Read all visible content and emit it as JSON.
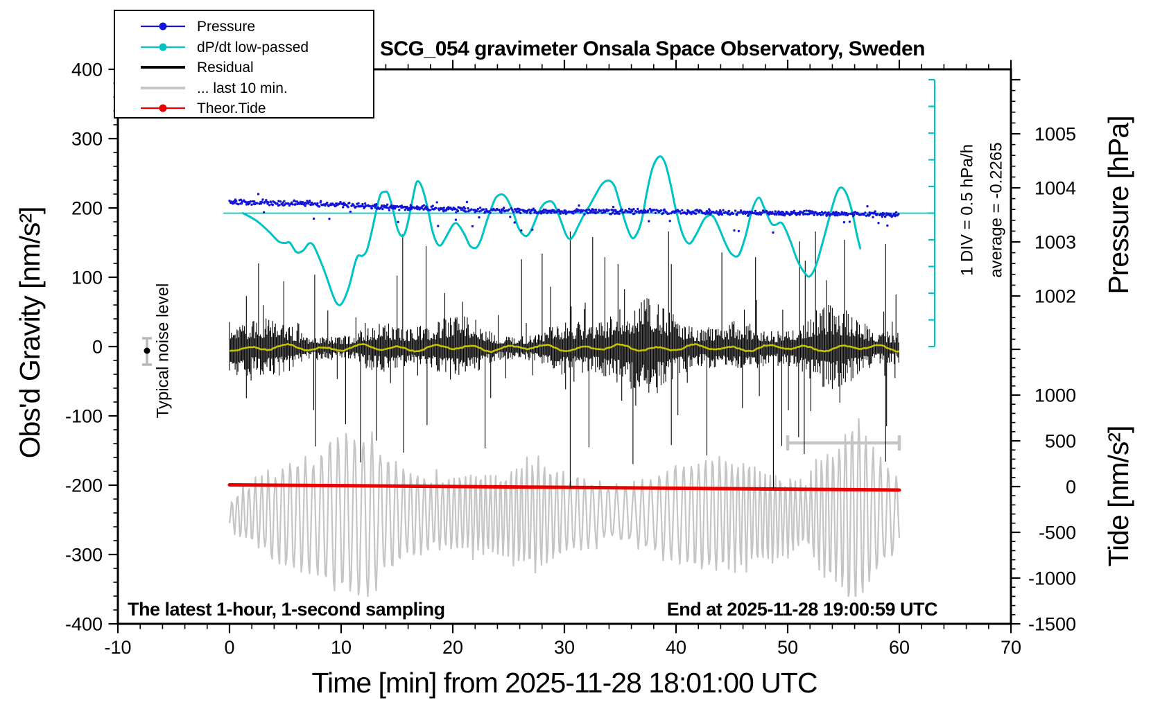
{
  "title": "SCG_054 gravimeter Onsala Space Observatory, Sweden",
  "axes": {
    "x": {
      "label": "Time [min] from 2025-11-28 18:01:00 UTC",
      "min": -10,
      "max": 70,
      "major_ticks": [
        -10,
        0,
        10,
        20,
        30,
        40,
        50,
        60,
        70
      ],
      "minor_step": 2
    },
    "y_left": {
      "label": "Obs'd Gravity [nm/s²]",
      "min": -400,
      "max": 400,
      "major_ticks": [
        400,
        300,
        200,
        100,
        0,
        -100,
        -200,
        -300,
        -400
      ],
      "minor_step": 20
    },
    "y_right_pressure": {
      "label": "Pressure [hPa]",
      "tick_labels": [
        1005,
        1004,
        1003,
        1002
      ],
      "major_step": 1,
      "minor_step": 0.2
    },
    "y_right_tide": {
      "label": "Tide [nm/s²]",
      "tick_labels": [
        1000,
        500,
        0,
        -500,
        -1000,
        -1500
      ],
      "major_step": 500,
      "minor_step": 100
    }
  },
  "legend": {
    "items": [
      {
        "label": "Pressure",
        "color": "#1515d6",
        "marker": "dot",
        "lw": 2.2
      },
      {
        "label": "dP/dt low-passed",
        "color": "#00c4c4",
        "marker": "dot",
        "lw": 2.2
      },
      {
        "label": "Residual",
        "color": "#000000",
        "marker": "none",
        "lw": 4
      },
      {
        "label": "... last 10 min.",
        "color": "#c5c5c5",
        "marker": "none",
        "lw": 4
      },
      {
        "label": "Theor.Tide",
        "color": "#e80000",
        "marker": "dot",
        "lw": 2.2
      }
    ]
  },
  "annotations": {
    "typical_noise": "Typical noise level",
    "div_scale": "1 DIV = 0.5 hPa/h",
    "average": "average = -0.2265",
    "sampling_note": "The latest 1-hour, 1-second sampling",
    "end_note": "End at 2025-11-28 19:00:59 UTC"
  },
  "chart_data": {
    "type": "line",
    "title": "SCG_054 gravimeter Onsala Space Observatory, Sweden",
    "xlabel": "Time [min] from 2025-11-28 18:01:00 UTC",
    "x_range": [
      -10,
      70
    ],
    "y_left_range": [
      -400,
      400
    ],
    "series": {
      "pressure_hpa": {
        "color": "#1515d6",
        "points": [
          [
            0,
            1003.74
          ],
          [
            3,
            1003.73
          ],
          [
            6,
            1003.71
          ],
          [
            10,
            1003.69
          ],
          [
            14,
            1003.64
          ],
          [
            18,
            1003.62
          ],
          [
            22,
            1003.59
          ],
          [
            26,
            1003.58
          ],
          [
            30,
            1003.56
          ],
          [
            34,
            1003.56
          ],
          [
            38,
            1003.57
          ],
          [
            42,
            1003.55
          ],
          [
            46,
            1003.54
          ],
          [
            50,
            1003.53
          ],
          [
            54,
            1003.52
          ],
          [
            57,
            1003.51
          ],
          [
            60,
            1003.5
          ]
        ],
        "noise_sigma_hpa": 0.04
      },
      "dpdt_hpa_per_h": {
        "color": "#00c4c4",
        "reference": 0,
        "div_value": 0.5,
        "average": -0.2265,
        "points": [
          [
            1.2,
            0
          ],
          [
            2.4,
            -0.14
          ],
          [
            3.5,
            -0.34
          ],
          [
            4.4,
            -0.53
          ],
          [
            5,
            -0.56
          ],
          [
            5.4,
            -0.55
          ],
          [
            6,
            -0.73
          ],
          [
            6.6,
            -0.7
          ],
          [
            7.1,
            -0.57
          ],
          [
            7.5,
            -0.6
          ],
          [
            8,
            -0.82
          ],
          [
            8.6,
            -1.14
          ],
          [
            9.3,
            -1.56
          ],
          [
            9.7,
            -1.71
          ],
          [
            10.1,
            -1.68
          ],
          [
            10.7,
            -1.38
          ],
          [
            11.2,
            -0.97
          ],
          [
            11.5,
            -0.8
          ],
          [
            11.9,
            -0.8
          ],
          [
            12.3,
            -0.7
          ],
          [
            12.7,
            -0.38
          ],
          [
            13.1,
            0
          ],
          [
            13.5,
            0.34
          ],
          [
            13.9,
            0.4
          ],
          [
            14.2,
            0.37
          ],
          [
            14.6,
            0.1
          ],
          [
            15,
            -0.26
          ],
          [
            15.35,
            -0.42
          ],
          [
            15.65,
            -0.4
          ],
          [
            15.95,
            -0.2
          ],
          [
            16.3,
            0.15
          ],
          [
            16.7,
            0.55
          ],
          [
            17,
            0.58
          ],
          [
            17.35,
            0.42
          ],
          [
            17.8,
            0.05
          ],
          [
            18.15,
            -0.31
          ],
          [
            18.5,
            -0.53
          ],
          [
            18.85,
            -0.61
          ],
          [
            19.2,
            -0.52
          ],
          [
            19.65,
            -0.35
          ],
          [
            20.05,
            -0.21
          ],
          [
            20.35,
            -0.19
          ],
          [
            20.65,
            -0.26
          ],
          [
            21.1,
            -0.42
          ],
          [
            21.5,
            -0.6
          ],
          [
            21.85,
            -0.65
          ],
          [
            22.2,
            -0.63
          ],
          [
            22.55,
            -0.48
          ],
          [
            22.95,
            -0.21
          ],
          [
            23.4,
            0.06
          ],
          [
            23.8,
            0.27
          ],
          [
            24.15,
            0.34
          ],
          [
            24.45,
            0.35
          ],
          [
            24.75,
            0.3
          ],
          [
            25.1,
            0.17
          ],
          [
            25.5,
            -0.04
          ],
          [
            25.85,
            -0.26
          ],
          [
            26.2,
            -0.38
          ],
          [
            26.55,
            -0.43
          ],
          [
            26.85,
            -0.38
          ],
          [
            27.15,
            -0.26
          ],
          [
            27.5,
            -0.08
          ],
          [
            27.85,
            0.08
          ],
          [
            28.2,
            0.18
          ],
          [
            28.6,
            0.22
          ],
          [
            28.9,
            0.21
          ],
          [
            29.15,
            0.14
          ],
          [
            29.45,
            -0.01
          ],
          [
            29.8,
            -0.21
          ],
          [
            30.1,
            -0.38
          ],
          [
            30.35,
            -0.47
          ],
          [
            30.6,
            -0.48
          ],
          [
            30.9,
            -0.39
          ],
          [
            31.2,
            -0.26
          ],
          [
            31.7,
            -0.05
          ],
          [
            32.2,
            0.12
          ],
          [
            32.8,
            0.35
          ],
          [
            33.4,
            0.55
          ],
          [
            34,
            0.61
          ],
          [
            34.5,
            0.5
          ],
          [
            35,
            0.15
          ],
          [
            35.5,
            -0.2
          ],
          [
            36,
            -0.45
          ],
          [
            36.4,
            -0.42
          ],
          [
            36.9,
            -0.15
          ],
          [
            37.4,
            0.4
          ],
          [
            37.9,
            0.85
          ],
          [
            38.5,
            1.06
          ],
          [
            39,
            0.95
          ],
          [
            39.5,
            0.55
          ],
          [
            40,
            0.05
          ],
          [
            40.6,
            -0.4
          ],
          [
            41.2,
            -0.57
          ],
          [
            41.8,
            -0.4
          ],
          [
            42.5,
            -0.12
          ],
          [
            43,
            -0.04
          ],
          [
            43.4,
            -0.08
          ],
          [
            43.9,
            -0.3
          ],
          [
            44.5,
            -0.6
          ],
          [
            45,
            -0.77
          ],
          [
            45.6,
            -0.79
          ],
          [
            46.2,
            -0.45
          ],
          [
            46.8,
            0.05
          ],
          [
            47.4,
            0.29
          ],
          [
            47.9,
            0.1
          ],
          [
            48.5,
            -0.18
          ],
          [
            48.9,
            -0.22
          ],
          [
            49.5,
            -0.19
          ],
          [
            50.2,
            -0.5
          ],
          [
            50.9,
            -0.9
          ],
          [
            51.6,
            -1.14
          ],
          [
            52,
            -1.18
          ],
          [
            52.5,
            -1
          ],
          [
            53.2,
            -0.5
          ],
          [
            53.9,
            0.05
          ],
          [
            54.4,
            0.38
          ],
          [
            54.8,
            0.48
          ],
          [
            55.3,
            0.35
          ],
          [
            55.8,
            0
          ],
          [
            56.2,
            -0.4
          ],
          [
            56.5,
            -0.66
          ]
        ]
      },
      "residual_nm_s2": {
        "color": "#000000",
        "mean": 0,
        "typical_amplitude": 45,
        "spikes_up": [
          [
            2.6,
            120
          ],
          [
            15.5,
            162
          ],
          [
            17.6,
            145
          ],
          [
            26.2,
            126
          ],
          [
            28,
            134
          ],
          [
            32.5,
            158
          ],
          [
            33.6,
            129
          ],
          [
            39.6,
            119
          ],
          [
            47.1,
            129
          ],
          [
            51.6,
            124
          ],
          [
            55.1,
            154
          ],
          [
            58.8,
            148
          ]
        ],
        "spikes_down": [
          [
            7.7,
            -140
          ],
          [
            11.7,
            -163
          ],
          [
            15.6,
            -149
          ],
          [
            22.9,
            -143
          ],
          [
            30.5,
            -200
          ],
          [
            42.8,
            -153
          ],
          [
            48.7,
            -202
          ],
          [
            51.5,
            -151
          ],
          [
            58.8,
            -162
          ]
        ]
      },
      "residual_smoothed_nm_s2": {
        "color": "#c3c300",
        "mean": -2,
        "wiggle_amplitude": 5
      },
      "residual_last10_stretched": {
        "color": "#c5c5c5",
        "display_offset_nm_s2": -242,
        "cycle_minutes": 0.62,
        "envelope": [
          [
            0,
            25
          ],
          [
            1,
            65
          ],
          [
            2,
            88
          ],
          [
            3.5,
            115
          ],
          [
            5.5,
            112
          ],
          [
            7.4,
            85
          ],
          [
            9.3,
            100
          ],
          [
            11.4,
            108
          ],
          [
            12.7,
            112
          ],
          [
            14.2,
            95
          ],
          [
            16.1,
            100
          ],
          [
            17.6,
            98
          ],
          [
            18.7,
            115
          ],
          [
            20.1,
            90
          ],
          [
            21.7,
            80
          ],
          [
            22.9,
            65
          ],
          [
            24.5,
            58
          ],
          [
            26,
            68
          ],
          [
            27.6,
            75
          ],
          [
            29.1,
            68
          ],
          [
            31,
            72
          ],
          [
            32.2,
            88
          ],
          [
            34.1,
            75
          ],
          [
            36,
            70
          ],
          [
            38.4,
            72
          ],
          [
            40.9,
            68
          ],
          [
            43.4,
            75
          ],
          [
            45.3,
            82
          ],
          [
            47.1,
            100
          ],
          [
            48.7,
            120
          ],
          [
            50.2,
            105
          ],
          [
            51.8,
            92
          ],
          [
            53,
            128
          ],
          [
            54.6,
            125
          ],
          [
            56.1,
            138
          ],
          [
            57.4,
            95
          ],
          [
            58.6,
            65
          ],
          [
            60,
            45
          ]
        ],
        "span_marker_minutes": [
          50,
          60
        ]
      },
      "theor_tide_nm_s2": {
        "color": "#e80000",
        "points": [
          [
            0,
            19
          ],
          [
            30,
            -8
          ],
          [
            60,
            -38
          ]
        ]
      }
    },
    "noise_marker": {
      "center_nm_s2": -6,
      "half_range_nm_s2": 20
    }
  }
}
